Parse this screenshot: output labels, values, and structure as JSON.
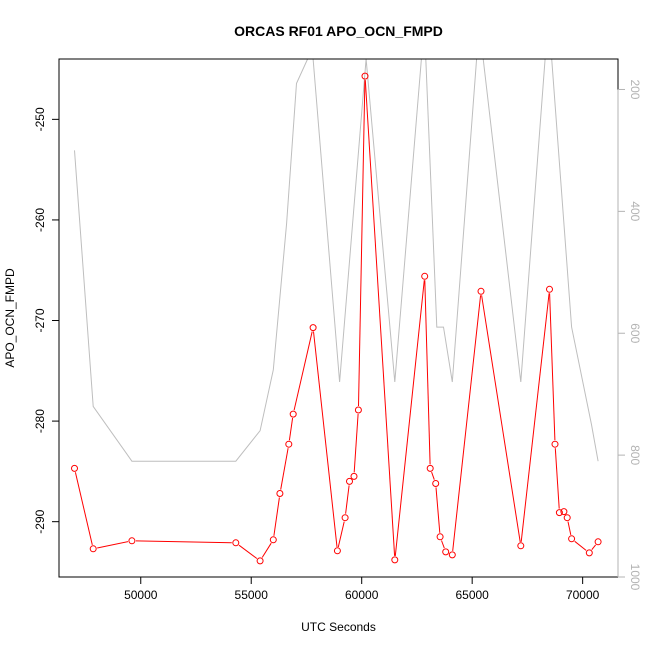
{
  "chart_data": {
    "type": "line",
    "title": "ORCAS RF01 APO_OCN_FMPD",
    "xlabel": "UTC Seconds",
    "ylabel": "APO_OCN_FMPD",
    "xlim": [
      46300,
      71600
    ],
    "ylim": [
      -295.5,
      -244
    ],
    "y2lim": [
      1000,
      150
    ],
    "x_ticks": [
      50000,
      55000,
      60000,
      65000,
      70000
    ],
    "x_tick_labels": [
      "50000",
      "55000",
      "60000",
      "65000",
      "70000"
    ],
    "y_ticks": [
      -290,
      -280,
      -270,
      -260,
      -250
    ],
    "y_tick_labels": [
      "-290",
      "-280",
      "-270",
      "-260",
      "-250"
    ],
    "y2_ticks": [
      200,
      400,
      600,
      800,
      1000
    ],
    "y2_tick_labels": [
      "200",
      "400",
      "600",
      "800",
      "1000"
    ],
    "grid": false,
    "colors": {
      "main_series": "#ff0000",
      "secondary_series": "#bebebe",
      "right_axis": "#b3b3b3"
    },
    "series": [
      {
        "axis": "left",
        "marker": "open-circle",
        "x": [
          47000,
          47850,
          49600,
          54300,
          55400,
          56000,
          56300,
          56700,
          56900,
          57800,
          58900,
          59250,
          59450,
          59650,
          59850,
          60150,
          61500,
          62850,
          63100,
          63350,
          63550,
          63800,
          64100,
          65400,
          67200,
          68500,
          68750,
          68950,
          69150,
          69300,
          69500,
          70300,
          70700
        ],
        "y": [
          -284.7,
          -292.7,
          -291.9,
          -292.1,
          -293.9,
          -291.8,
          -287.2,
          -282.3,
          -279.3,
          -270.7,
          -292.9,
          -289.6,
          -286.0,
          -285.5,
          -278.9,
          -245.7,
          -293.8,
          -265.6,
          -284.7,
          -286.2,
          -291.5,
          -293.0,
          -293.3,
          -267.1,
          -292.4,
          -266.9,
          -282.3,
          -289.1,
          -289.0,
          -289.6,
          -291.7,
          -293.1,
          -292.0
        ]
      },
      {
        "axis": "right",
        "x": [
          47000,
          47850,
          49600,
          54300,
          55400,
          56000,
          56600,
          57050,
          57550,
          57800,
          59000,
          60200,
          61500,
          62700,
          62900,
          63400,
          63700,
          64100,
          65200,
          65500,
          67200,
          68300,
          68600,
          69500,
          70400,
          70700
        ],
        "y": [
          300,
          720,
          810,
          810,
          760,
          660,
          420,
          190,
          150,
          150,
          680,
          150,
          680,
          150,
          150,
          590,
          590,
          680,
          150,
          150,
          680,
          150,
          150,
          590,
          750,
          810
        ]
      }
    ]
  }
}
